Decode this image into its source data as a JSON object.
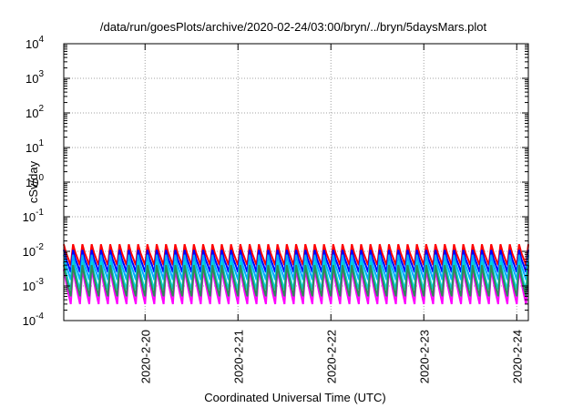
{
  "chart_data": {
    "type": "line",
    "title": "/data/run/goesPlots/archive/2020-02-24/03:00/bryn/../bryn/5daysMars.plot",
    "xlabel": "Coordinated Universal Time (UTC)",
    "ylabel": "cSv/day",
    "yscale": "log",
    "ylim": [
      0.0001,
      10000
    ],
    "xlim": [
      "2020-02-19 03:00",
      "2020-02-24 03:00"
    ],
    "y_ticks": [
      {
        "value": 0.0001,
        "base": "10",
        "exp": "-4"
      },
      {
        "value": 0.001,
        "base": "10",
        "exp": "-3"
      },
      {
        "value": 0.01,
        "base": "10",
        "exp": "-2"
      },
      {
        "value": 0.1,
        "base": "10",
        "exp": "-1"
      },
      {
        "value": 1,
        "base": "10",
        "exp": "0"
      },
      {
        "value": 10,
        "base": "10",
        "exp": "1"
      },
      {
        "value": 100,
        "base": "10",
        "exp": "2"
      },
      {
        "value": 1000,
        "base": "10",
        "exp": "3"
      },
      {
        "value": 10000,
        "base": "10",
        "exp": "4"
      }
    ],
    "x_ticks": [
      "2020-2-20",
      "2020-2-21",
      "2020-2-22",
      "2020-2-23",
      "2020-2-24"
    ],
    "grid": true,
    "legend": "none",
    "sawtooth_period_hours": 2.4,
    "series": [
      {
        "color": "#ff0000",
        "values": [
          0.016,
          0.009,
          0.006,
          0.004
        ]
      },
      {
        "color": "#0000ff",
        "values": [
          0.011,
          0.006,
          0.004,
          0.0025
        ]
      },
      {
        "color": "#00aaff",
        "values": [
          0.008,
          0.004,
          0.0025,
          0.0015
        ]
      },
      {
        "color": "#00d8d8",
        "values": [
          0.005,
          0.0025,
          0.0013,
          0.0008
        ]
      },
      {
        "color": "#ff00ff",
        "values": [
          0.003,
          0.0013,
          0.0006,
          0.0003
        ]
      },
      {
        "color": "#2e8b57",
        "values": [
          0.004,
          0.0018,
          0.0009,
          0.0005
        ]
      }
    ]
  }
}
